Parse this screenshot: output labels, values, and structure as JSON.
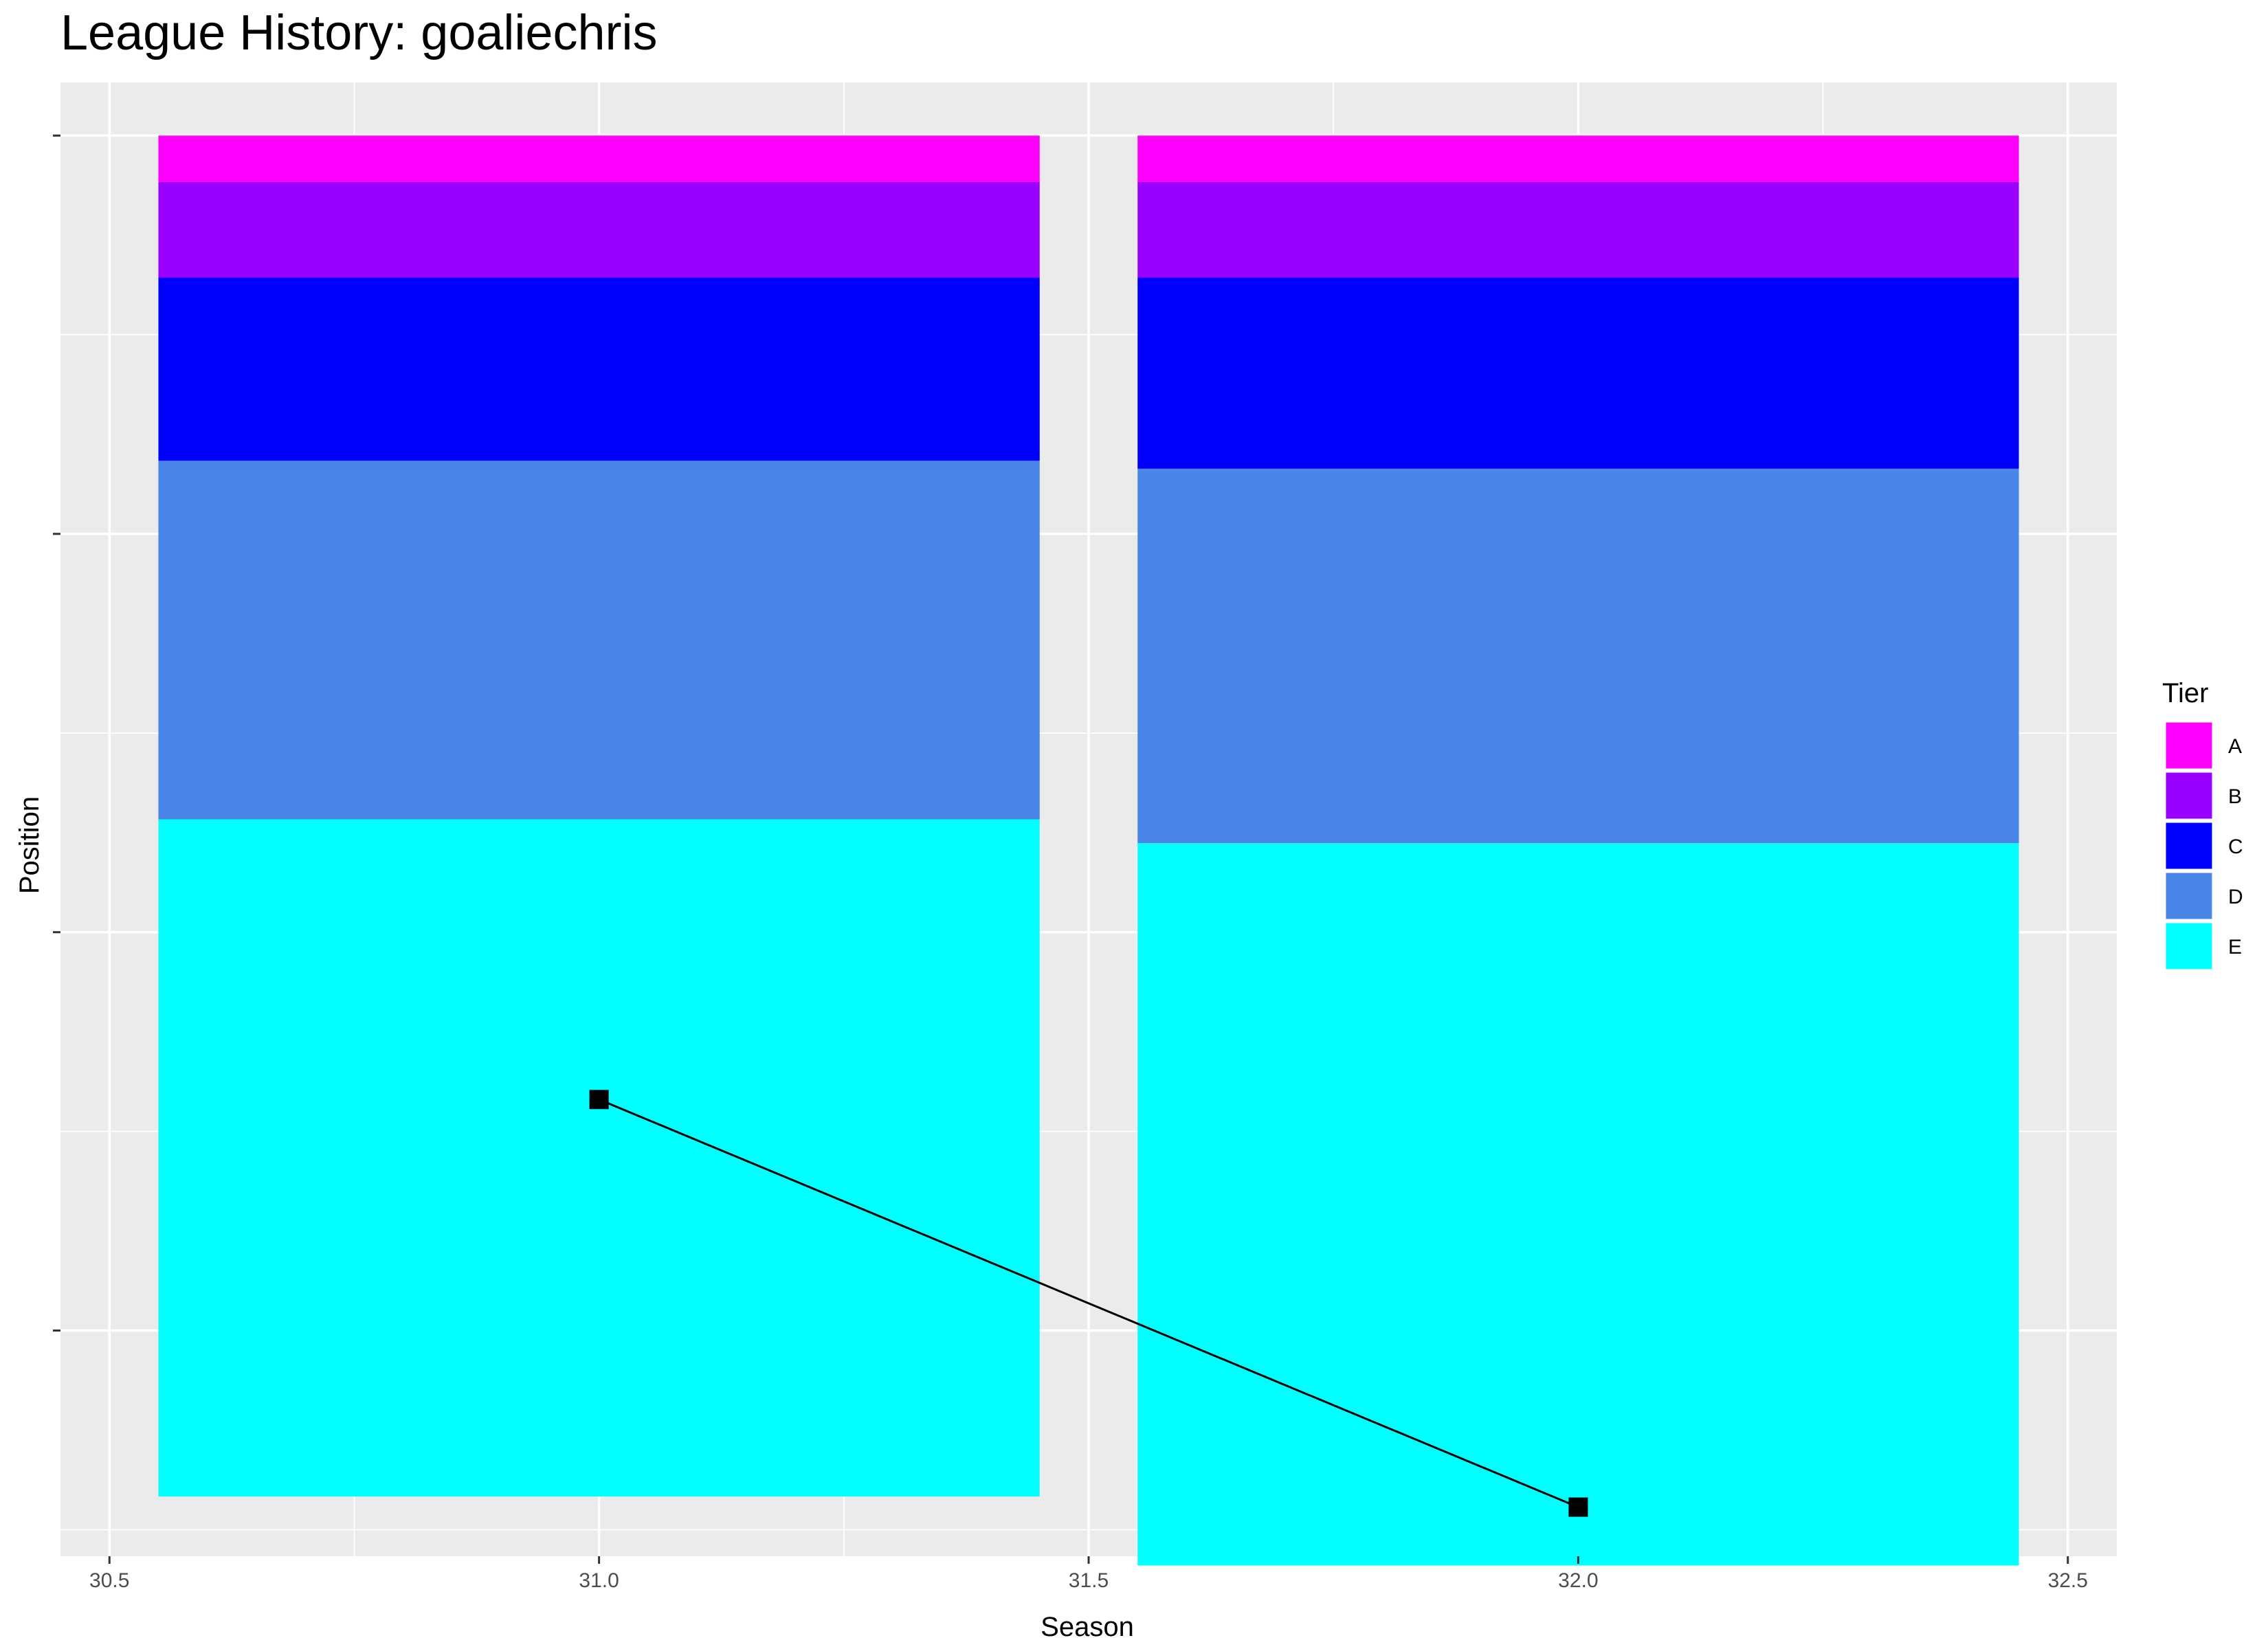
{
  "chart_data": {
    "type": "bar",
    "title": "League History: goaliechris",
    "xlabel": "Season",
    "ylabel": "Position",
    "xlim": [
      30.45,
      32.55
    ],
    "ylim": [
      107,
      -4
    ],
    "y_reversed": true,
    "x_ticks": [
      30.5,
      31.0,
      31.5,
      32.0,
      32.5
    ],
    "x_tick_labels": [
      "30.5",
      "31.0",
      "31.5",
      "32.0",
      "32.5"
    ],
    "y_ticks": [
      0,
      30,
      60,
      90
    ],
    "y_tick_labels": [
      "",
      "",
      "",
      ""
    ],
    "grid": true,
    "legend": {
      "title": "Tier",
      "position": "right",
      "entries": [
        "A",
        "B",
        "C",
        "D",
        "E"
      ]
    },
    "colors": {
      "A": "#FF00FF",
      "B": "#9900FF",
      "C": "#0000FF",
      "D": "#4A86E8",
      "E": "#00FFFF",
      "panel": "#EBEBEB",
      "grid": "#FFFFFF",
      "line": "#000000"
    },
    "bar_width": 0.9,
    "stacks": [
      {
        "season": 31,
        "segments": [
          {
            "tier": "A",
            "from": 0,
            "to": 3.5
          },
          {
            "tier": "B",
            "from": 3.5,
            "to": 10.7
          },
          {
            "tier": "C",
            "from": 10.7,
            "to": 24.5
          },
          {
            "tier": "D",
            "from": 24.5,
            "to": 51.5
          },
          {
            "tier": "E",
            "from": 51.5,
            "to": 102.5
          }
        ]
      },
      {
        "season": 32,
        "segments": [
          {
            "tier": "A",
            "from": 0,
            "to": 3.5
          },
          {
            "tier": "B",
            "from": 3.5,
            "to": 10.7
          },
          {
            "tier": "C",
            "from": 10.7,
            "to": 25.1
          },
          {
            "tier": "D",
            "from": 25.1,
            "to": 53.3
          },
          {
            "tier": "E",
            "from": 53.3,
            "to": 107.7
          }
        ]
      }
    ],
    "series": [
      {
        "x": [
          31,
          32
        ],
        "y": [
          72.6,
          103.3
        ],
        "marker": "square"
      }
    ]
  }
}
